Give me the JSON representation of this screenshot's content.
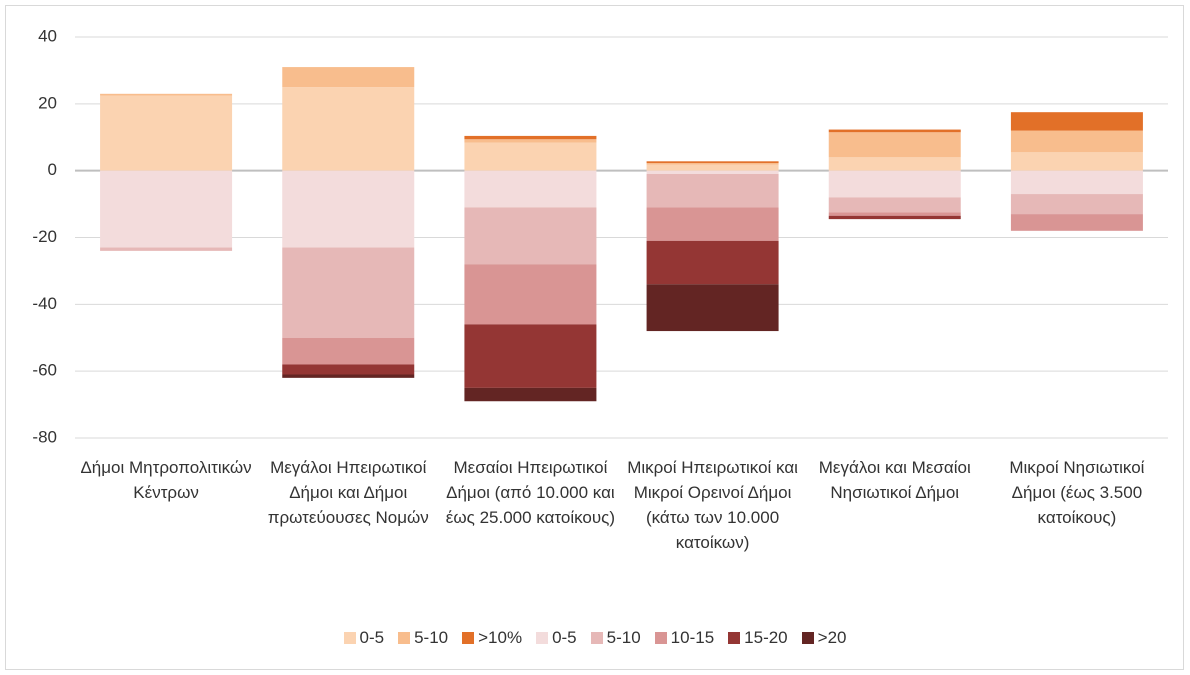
{
  "chart_data": {
    "type": "bar",
    "stacked": true,
    "categories": [
      "Δήμοι Μητροπολιτικών Κέντρων",
      "Μεγάλοι Ηπειρωτικοί Δήμοι και Δήμοι πρωτεύουσες Νομών",
      "Μεσαίοι Ηπειρωτικοί Δήμοι (από 10.000 και έως 25.000 κατοίκους)",
      "Μικροί Ηπειρωτικοί και Μικροί Ορεινοί Δήμοι (κάτω των 10.000 κατοίκων)",
      "Μεγάλοι και Μεσαίοι Νησιωτικοί Δήμοι",
      "Μικροί Νησιωτικοί Δήμοι (έως 3.500 κατοίκους)"
    ],
    "series": [
      {
        "name": "0-5",
        "color": "#fbd3b1",
        "values": [
          22.5,
          25,
          8.4,
          1.8,
          4,
          5.5
        ]
      },
      {
        "name": "5-10",
        "color": "#f8bd8d",
        "values": [
          0.5,
          6,
          1,
          0.5,
          7.5,
          6.5
        ]
      },
      {
        "name": ">10%",
        "color": "#e27028",
        "values": [
          0,
          0,
          1,
          0.5,
          0.8,
          5.5
        ]
      },
      {
        "name": "0-5",
        "color": "#f3dcdc",
        "values": [
          -23,
          -23,
          -11,
          -1,
          -8,
          -7
        ]
      },
      {
        "name": "5-10",
        "color": "#e6b8b7",
        "values": [
          -1,
          -27,
          -17,
          -10,
          -4.5,
          -6
        ]
      },
      {
        "name": "10-15",
        "color": "#d99594",
        "values": [
          0,
          -8,
          -18,
          -10,
          -1,
          -5
        ]
      },
      {
        "name": "15-20",
        "color": "#943634",
        "values": [
          0,
          -3,
          -19,
          -13,
          -1,
          0
        ]
      },
      {
        "name": ">20",
        "color": "#632523",
        "values": [
          0,
          -1,
          -4,
          -14,
          0,
          0
        ]
      }
    ],
    "ylim": [
      -80,
      40
    ],
    "yticks": [
      -80,
      -60,
      -40,
      -20,
      0,
      20,
      40
    ],
    "grid": true,
    "legend": "bottom"
  }
}
